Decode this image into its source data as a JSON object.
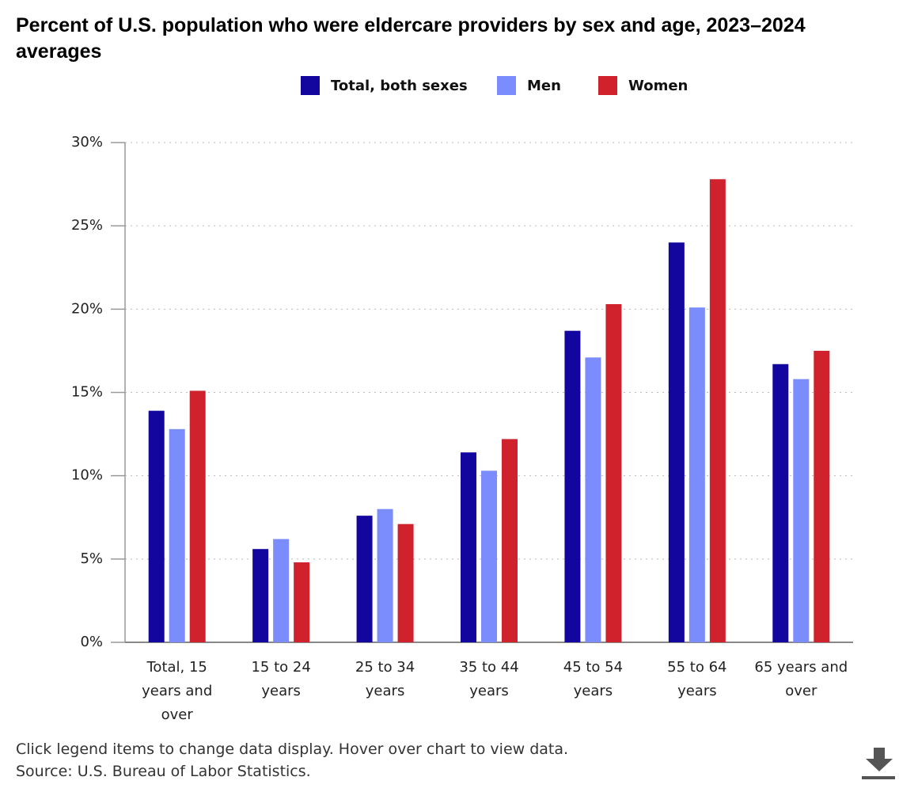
{
  "chart_data": {
    "type": "bar",
    "title": "Percent of U.S. population who were eldercare providers by sex and age, 2023–2024 averages",
    "categories": [
      "Total, 15 years and over",
      "15 to 24 years",
      "25 to 34 years",
      "35 to 44 years",
      "45 to 54 years",
      "55 to 64 years",
      "65 years and over"
    ],
    "series": [
      {
        "name": "Total, both sexes",
        "color": "#13069f",
        "values": [
          13.9,
          5.6,
          7.6,
          11.4,
          18.7,
          24.0,
          16.7
        ]
      },
      {
        "name": "Men",
        "color": "#7b8dfd",
        "values": [
          12.8,
          6.2,
          8.0,
          10.3,
          17.1,
          20.1,
          15.8
        ]
      },
      {
        "name": "Women",
        "color": "#d0222d",
        "values": [
          15.1,
          4.8,
          7.1,
          12.2,
          20.3,
          27.8,
          17.5
        ]
      }
    ],
    "ylim": [
      0,
      30
    ],
    "yticks": [
      {
        "value": 0,
        "label": "0%"
      },
      {
        "value": 5,
        "label": "5%"
      },
      {
        "value": 10,
        "label": "10%"
      },
      {
        "value": 15,
        "label": "15%"
      },
      {
        "value": 20,
        "label": "20%"
      },
      {
        "value": 25,
        "label": "25%"
      },
      {
        "value": 30,
        "label": "30%"
      }
    ],
    "grid": true,
    "notes": [
      "Click legend items to change data display. Hover over chart to view data.",
      "Source: U.S. Bureau of Labor Statistics."
    ]
  }
}
